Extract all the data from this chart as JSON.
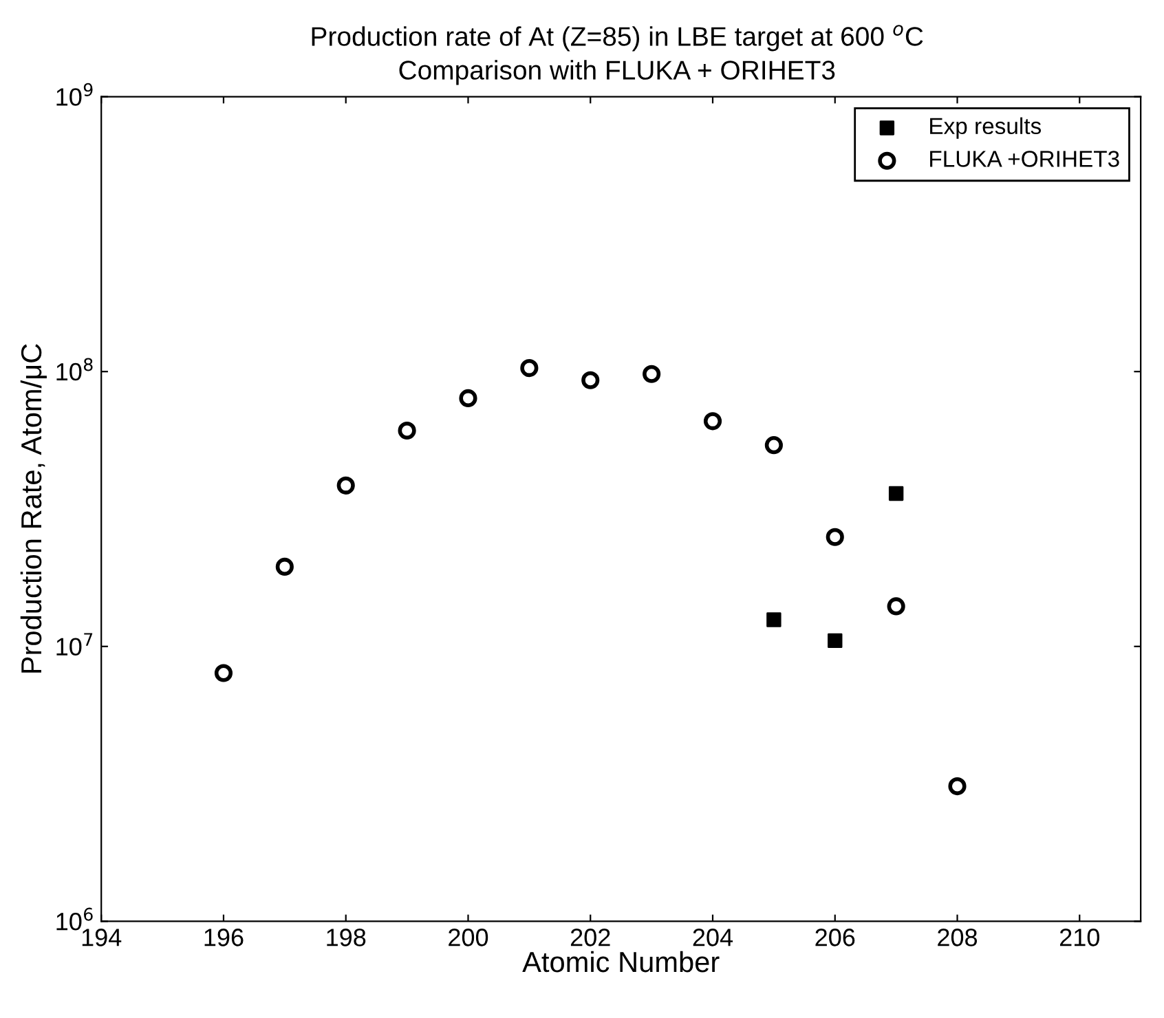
{
  "chart_data": {
    "type": "scatter",
    "title": "Production rate of At (Z=85) in LBE target at 600 $^{o}$C",
    "subtitle": "Comparison with FLUKA + ORIHET3",
    "xlabel": "Atomic Number",
    "ylabel": "Production Rate, Atom/μC",
    "log": "y",
    "xlim": [
      194,
      211
    ],
    "xticks": [
      194,
      196,
      198,
      200,
      202,
      204,
      206,
      208,
      210
    ],
    "ylim": [
      1000000,
      1000000000
    ],
    "yticks": [
      {
        "value": 1000000,
        "label": "10$^{6}$"
      },
      {
        "value": 10000000,
        "label": "10$^{7}$"
      },
      {
        "value": 100000000,
        "label": "10$^{8}$"
      },
      {
        "value": 1000000000,
        "label": "10$^{9}$"
      }
    ],
    "grid": false,
    "legend": "top right",
    "series": [
      {
        "name": "Exp results",
        "color": "#000000",
        "marker": "square",
        "x": [
          205,
          206,
          207
        ],
        "values": [
          12500000,
          10500000,
          36000000
        ]
      },
      {
        "name": "FLUKA +ORIHET3",
        "color": "#000000",
        "marker": "circle",
        "x": [
          196,
          197,
          198,
          199,
          200,
          201,
          202,
          203,
          204,
          205,
          206,
          207,
          208
        ],
        "values": [
          8000000,
          19500000,
          38500000,
          61000000,
          80000000,
          103000000,
          93000000,
          98000000,
          66000000,
          54000000,
          25000000,
          14000000,
          3100000
        ]
      }
    ]
  }
}
